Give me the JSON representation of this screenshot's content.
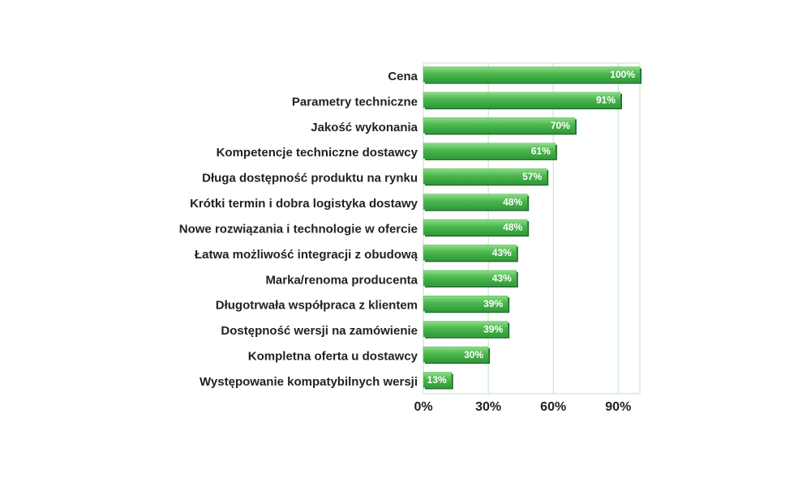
{
  "chart_data": {
    "type": "bar",
    "orientation": "horizontal",
    "categories": [
      "Cena",
      "Parametry techniczne",
      "Jakość wykonania",
      "Kompetencje techniczne dostawcy",
      "Długa dostępność produktu na rynku",
      "Krótki termin i dobra logistyka dostawy",
      "Nowe rozwiązania i technologie w ofercie",
      "Łatwa możliwość integracji z obudową",
      "Marka/renoma producenta",
      "Długotrwała współpraca z klientem",
      "Dostępność wersji na zamówienie",
      "Kompletna oferta u dostawcy",
      "Występowanie kompatybilnych wersji"
    ],
    "values": [
      100,
      91,
      70,
      61,
      57,
      48,
      48,
      43,
      43,
      39,
      39,
      30,
      13
    ],
    "value_labels": [
      "100%",
      "91%",
      "70%",
      "61%",
      "57%",
      "48%",
      "48%",
      "43%",
      "43%",
      "39%",
      "39%",
      "30%",
      "13%"
    ],
    "color": "#4cb84e",
    "xlim": [
      0,
      100
    ],
    "xticks": [
      {
        "value": 0,
        "label": "0%"
      },
      {
        "value": 30,
        "label": "30%"
      },
      {
        "value": 60,
        "label": "60%"
      },
      {
        "value": 90,
        "label": "90%"
      }
    ],
    "grid": true
  }
}
